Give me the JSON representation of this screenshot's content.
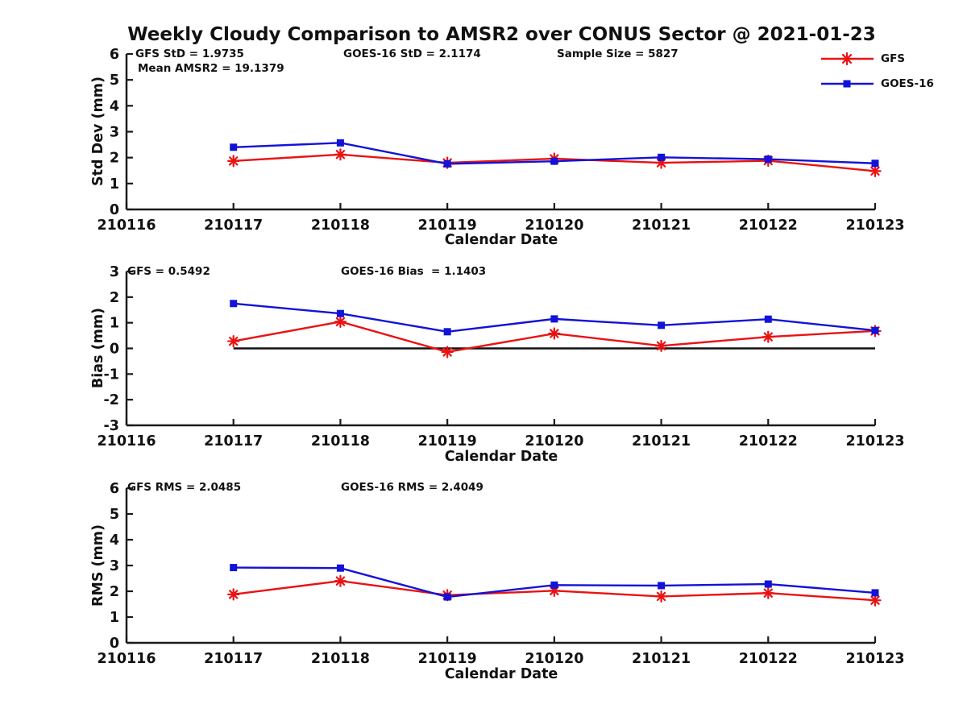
{
  "title": "Weekly Cloudy Comparison to AMSR2 over CONUS Sector @ 2021-01-23",
  "colors": {
    "gfs": "#ea1212",
    "goes16": "#1212d8",
    "axis": "#1a1a1a",
    "zero_line": "#111111"
  },
  "legend": {
    "position": "top-right",
    "items": [
      {
        "label": "GFS",
        "marker": "asterisk",
        "color": "#ea1212"
      },
      {
        "label": "GOES-16",
        "marker": "square",
        "color": "#1212d8"
      }
    ]
  },
  "chart_data": [
    {
      "type": "line",
      "id": "stddev",
      "ylabel": "Std Dev (mm)",
      "xlabel": "Calendar Date",
      "ylim": [
        0,
        6
      ],
      "yticks": [
        0,
        1,
        2,
        3,
        4,
        5,
        6
      ],
      "categories": [
        "210116",
        "210117",
        "210118",
        "210119",
        "210120",
        "210121",
        "210122",
        "210123"
      ],
      "data_dates": [
        "210117",
        "210118",
        "210119",
        "210120",
        "210121",
        "210122",
        "210123"
      ],
      "zero_line": false,
      "grid": false,
      "series": [
        {
          "name": "GFS",
          "color": "#ea1212",
          "marker": "asterisk",
          "values": [
            1.87,
            2.12,
            1.8,
            1.96,
            1.8,
            1.88,
            1.48
          ]
        },
        {
          "name": "GOES-16",
          "color": "#1212d8",
          "marker": "square",
          "values": [
            2.4,
            2.57,
            1.76,
            1.86,
            2.01,
            1.94,
            1.78
          ]
        }
      ],
      "annotations": [
        {
          "text": "GFS StD = 1.9735"
        },
        {
          "text": "Mean AMSR2 = 19.1379"
        },
        {
          "text": "GOES-16 StD = 2.1174"
        },
        {
          "text": "Sample Size = 5827"
        }
      ]
    },
    {
      "type": "line",
      "id": "bias",
      "ylabel": "Bias (mm)",
      "xlabel": "Calendar Date",
      "ylim": [
        -3,
        3
      ],
      "yticks": [
        -3,
        -2,
        -1,
        0,
        1,
        2,
        3
      ],
      "categories": [
        "210116",
        "210117",
        "210118",
        "210119",
        "210120",
        "210121",
        "210122",
        "210123"
      ],
      "data_dates": [
        "210117",
        "210118",
        "210119",
        "210120",
        "210121",
        "210122",
        "210123"
      ],
      "zero_line": true,
      "grid": false,
      "series": [
        {
          "name": "GFS",
          "color": "#ea1212",
          "marker": "asterisk",
          "values": [
            0.28,
            1.04,
            -0.14,
            0.58,
            0.1,
            0.45,
            0.68
          ]
        },
        {
          "name": "GOES-16",
          "color": "#1212d8",
          "marker": "square",
          "values": [
            1.75,
            1.36,
            0.65,
            1.15,
            0.9,
            1.14,
            0.7
          ]
        }
      ],
      "annotations": [
        {
          "text": "GFS = 0.5492"
        },
        {
          "text": "GOES-16 Bias  = 1.1403"
        }
      ]
    },
    {
      "type": "line",
      "id": "rms",
      "ylabel": "RMS (mm)",
      "xlabel": "Calendar Date",
      "ylim": [
        0,
        6
      ],
      "yticks": [
        0,
        1,
        2,
        3,
        4,
        5,
        6
      ],
      "categories": [
        "210116",
        "210117",
        "210118",
        "210119",
        "210120",
        "210121",
        "210122",
        "210123"
      ],
      "data_dates": [
        "210117",
        "210118",
        "210119",
        "210120",
        "210121",
        "210122",
        "210123"
      ],
      "zero_line": false,
      "grid": false,
      "series": [
        {
          "name": "GFS",
          "color": "#ea1212",
          "marker": "asterisk",
          "values": [
            1.88,
            2.4,
            1.85,
            2.02,
            1.8,
            1.93,
            1.65
          ]
        },
        {
          "name": "GOES-16",
          "color": "#1212d8",
          "marker": "square",
          "values": [
            2.92,
            2.9,
            1.78,
            2.24,
            2.22,
            2.28,
            1.94
          ]
        }
      ],
      "annotations": [
        {
          "text": "GFS RMS = 2.0485"
        },
        {
          "text": "GOES-16 RMS = 2.4049"
        }
      ]
    }
  ]
}
